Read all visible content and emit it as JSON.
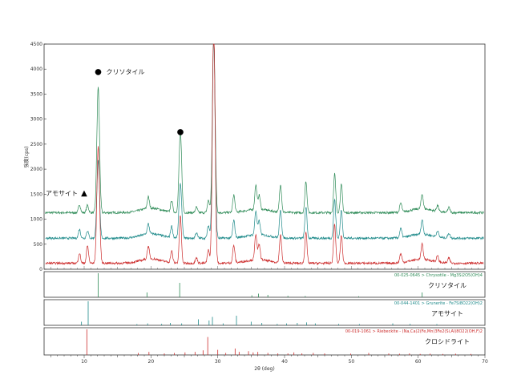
{
  "chart_data": {
    "type": "line",
    "xlabel": "2θ (deg)",
    "ylabel": "強度(cps)",
    "xlim": [
      4,
      70
    ],
    "ylim": [
      0,
      4500
    ],
    "x_ticks": [
      10,
      20,
      30,
      40,
      50,
      60,
      70
    ],
    "y_ticks": [
      0,
      500,
      1000,
      1500,
      2000,
      2500,
      3000,
      3500,
      4000,
      4500
    ],
    "grid": false,
    "series": [
      {
        "color": "#2e8b57",
        "baseline": 1130,
        "peaks": [
          [
            9.3,
            160
          ],
          [
            10.5,
            150
          ],
          [
            12.1,
            2520
          ],
          [
            19.6,
            230
          ],
          [
            23.1,
            230
          ],
          [
            24.4,
            1620
          ],
          [
            26.8,
            110
          ],
          [
            28.6,
            250
          ],
          [
            29.4,
            3600
          ],
          [
            32.4,
            350
          ],
          [
            35.7,
            480
          ],
          [
            36.2,
            280
          ],
          [
            39.4,
            560
          ],
          [
            43.2,
            630
          ],
          [
            47.5,
            780
          ],
          [
            48.5,
            560
          ],
          [
            57.4,
            180
          ],
          [
            60.6,
            290
          ],
          [
            62.9,
            120
          ],
          [
            64.6,
            100
          ]
        ]
      },
      {
        "color": "#1e8a8a",
        "baseline": 620,
        "peaks": [
          [
            9.3,
            180
          ],
          [
            10.5,
            150
          ],
          [
            12.1,
            1550
          ],
          [
            19.6,
            200
          ],
          [
            23.1,
            230
          ],
          [
            24.4,
            1100
          ],
          [
            26.8,
            110
          ],
          [
            28.6,
            250
          ],
          [
            29.4,
            4100
          ],
          [
            32.4,
            350
          ],
          [
            35.7,
            480
          ],
          [
            36.2,
            280
          ],
          [
            39.4,
            560
          ],
          [
            43.2,
            630
          ],
          [
            47.5,
            780
          ],
          [
            48.5,
            560
          ],
          [
            57.4,
            180
          ],
          [
            60.6,
            290
          ],
          [
            62.9,
            120
          ],
          [
            64.6,
            100
          ]
        ]
      },
      {
        "color": "#cc2b2b",
        "baseline": 120,
        "peaks": [
          [
            9.3,
            200
          ],
          [
            10.5,
            350
          ],
          [
            12.1,
            2350
          ],
          [
            19.6,
            250
          ],
          [
            23.1,
            230
          ],
          [
            24.4,
            960
          ],
          [
            26.8,
            110
          ],
          [
            28.6,
            260
          ],
          [
            29.4,
            4800
          ],
          [
            32.4,
            350
          ],
          [
            35.7,
            520
          ],
          [
            36.2,
            300
          ],
          [
            39.4,
            560
          ],
          [
            43.2,
            630
          ],
          [
            47.5,
            780
          ],
          [
            48.5,
            560
          ],
          [
            57.4,
            180
          ],
          [
            60.6,
            300
          ],
          [
            62.9,
            120
          ],
          [
            64.6,
            100
          ]
        ]
      }
    ],
    "annotations": [
      {
        "marker": "●",
        "text": "クリソタイル",
        "x": 12.1,
        "y": 3950
      },
      {
        "marker": "●",
        "x": 24.4,
        "y": 2750
      },
      {
        "marker": "▲",
        "text": "アモサイト",
        "x": 10.0,
        "y": 1520
      }
    ],
    "reference_panels": [
      {
        "title": "00-025-0645 > Chrysotile - Mg3Si2O5(OH)4",
        "label": "クリソタイル",
        "color": "#2e8b57",
        "sticks": [
          [
            12.1,
            100
          ],
          [
            19.4,
            20
          ],
          [
            24.3,
            60
          ],
          [
            35.1,
            8
          ],
          [
            36.1,
            15
          ],
          [
            37.5,
            10
          ],
          [
            40.5,
            6
          ],
          [
            43.1,
            5
          ],
          [
            51.1,
            4
          ],
          [
            60.6,
            20
          ]
        ]
      },
      {
        "title": "00-044-1401 > Grunerite - Fe7Si8O22(OH)2",
        "label": "アモサイト",
        "color": "#1e8a8a",
        "sticks": [
          [
            9.6,
            15
          ],
          [
            10.6,
            100
          ],
          [
            17.9,
            5
          ],
          [
            19.5,
            8
          ],
          [
            21.6,
            6
          ],
          [
            22.9,
            10
          ],
          [
            24.6,
            8
          ],
          [
            27.1,
            25
          ],
          [
            28.7,
            20
          ],
          [
            29.2,
            35
          ],
          [
            30.8,
            8
          ],
          [
            32.8,
            40
          ],
          [
            35.0,
            15
          ],
          [
            36.6,
            10
          ],
          [
            38.9,
            6
          ],
          [
            40.3,
            8
          ],
          [
            41.9,
            10
          ],
          [
            43.3,
            12
          ],
          [
            44.6,
            8
          ],
          [
            48.1,
            6
          ],
          [
            51.2,
            5
          ],
          [
            56.2,
            8
          ],
          [
            58.8,
            6
          ],
          [
            62.8,
            5
          ]
        ]
      },
      {
        "title": "00-019-1061 > Riebeckite - (Na,Ca)2(Fe,Mn)3Fe2(Si,Al)8O22(OH,F)2",
        "label": "クロシドライト",
        "color": "#cc2b2b",
        "sticks": [
          [
            10.4,
            100
          ],
          [
            18.1,
            8
          ],
          [
            19.7,
            12
          ],
          [
            22.0,
            6
          ],
          [
            23.5,
            8
          ],
          [
            25.1,
            10
          ],
          [
            26.6,
            12
          ],
          [
            27.8,
            18
          ],
          [
            28.5,
            70
          ],
          [
            30.0,
            20
          ],
          [
            31.2,
            8
          ],
          [
            32.6,
            25
          ],
          [
            33.2,
            12
          ],
          [
            34.6,
            15
          ],
          [
            35.3,
            10
          ],
          [
            36.0,
            12
          ],
          [
            37.5,
            8
          ],
          [
            39.0,
            6
          ],
          [
            40.5,
            6
          ],
          [
            41.4,
            10
          ],
          [
            42.6,
            6
          ],
          [
            44.3,
            8
          ],
          [
            46.0,
            6
          ],
          [
            49.9,
            5
          ],
          [
            52.6,
            8
          ],
          [
            55.6,
            6
          ],
          [
            57.2,
            5
          ],
          [
            58.7,
            6
          ],
          [
            60.3,
            4
          ],
          [
            61.8,
            5
          ],
          [
            63.7,
            4
          ],
          [
            65.6,
            5
          ],
          [
            67.9,
            4
          ]
        ]
      }
    ]
  }
}
